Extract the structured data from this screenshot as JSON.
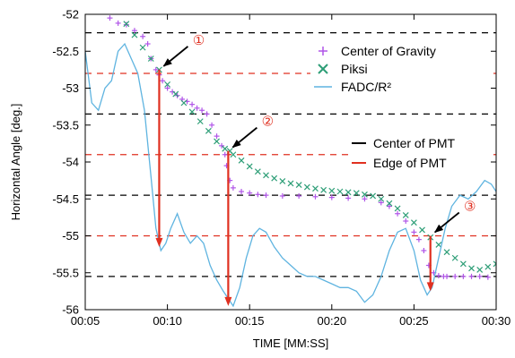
{
  "chart_data": {
    "type": "line",
    "xlabel": "TIME [MM:SS]",
    "ylabel": "Horizontal Angle [deg.]",
    "xlim": [
      5,
      30
    ],
    "ylim": [
      -56,
      -52
    ],
    "x_ticks": [
      {
        "v": 5,
        "label": "00:05"
      },
      {
        "v": 10,
        "label": "00:10"
      },
      {
        "v": 15,
        "label": "00:15"
      },
      {
        "v": 20,
        "label": "00:20"
      },
      {
        "v": 25,
        "label": "00:25"
      },
      {
        "v": 30,
        "label": "00:30"
      }
    ],
    "y_ticks": [
      {
        "v": -52,
        "label": "-52"
      },
      {
        "v": -52.5,
        "label": "-52.5"
      },
      {
        "v": -53,
        "label": "-53"
      },
      {
        "v": -53.5,
        "label": "-53.5"
      },
      {
        "v": -54,
        "label": "-54"
      },
      {
        "v": -54.5,
        "label": "-54.5"
      },
      {
        "v": -55,
        "label": "-55"
      },
      {
        "v": -55.5,
        "label": "-55.5"
      },
      {
        "v": -56,
        "label": "-56"
      }
    ],
    "pmt_center_lines": [
      -52.25,
      -53.35,
      -54.45,
      -55.55
    ],
    "pmt_edge_lines": [
      -52.8,
      -53.9,
      -55.0
    ],
    "series": [
      {
        "name": "Center of Gravity",
        "marker": "+",
        "color": "#b055e8",
        "x": [
          6.5,
          7.0,
          7.5,
          8.0,
          8.5,
          8.8,
          9.0,
          9.3,
          9.5,
          9.7,
          10.0,
          10.3,
          10.6,
          10.9,
          11.2,
          11.5,
          11.8,
          12.1,
          12.4,
          12.7,
          13.0,
          13.3,
          13.5,
          13.6,
          13.8,
          14.0,
          14.5,
          15.0,
          15.5,
          16,
          17,
          18,
          19,
          20,
          21,
          22,
          23,
          23.5,
          24,
          24.5,
          25,
          25.3,
          25.6,
          25.9,
          26.2,
          26.5,
          26.8,
          27,
          27.5,
          28,
          28.5,
          29,
          29.5
        ],
        "y": [
          -52.05,
          -52.12,
          -52.14,
          -52.22,
          -52.3,
          -52.4,
          -52.6,
          -52.75,
          -52.82,
          -52.9,
          -53.0,
          -53.05,
          -53.1,
          -53.15,
          -53.18,
          -53.22,
          -53.27,
          -53.3,
          -53.35,
          -53.5,
          -53.65,
          -53.78,
          -53.9,
          -54.05,
          -54.25,
          -54.35,
          -54.4,
          -54.42,
          -54.44,
          -54.45,
          -54.46,
          -54.46,
          -54.47,
          -54.48,
          -54.49,
          -54.5,
          -54.55,
          -54.6,
          -54.7,
          -54.8,
          -54.95,
          -55.05,
          -55.2,
          -55.4,
          -55.5,
          -55.54,
          -55.55,
          -55.55,
          -55.55,
          -55.55,
          -55.55,
          -55.55,
          -55.56
        ]
      },
      {
        "name": "Piksi",
        "marker": "x",
        "color": "#2e9e77",
        "x": [
          7.5,
          8.0,
          8.5,
          9.0,
          9.5,
          10.0,
          10.5,
          11.0,
          11.5,
          12.0,
          12.5,
          13.0,
          13.5,
          13.8,
          14.0,
          14.5,
          15.0,
          15.5,
          16.0,
          16.5,
          17.0,
          17.5,
          18,
          18.5,
          19,
          19.5,
          20,
          20.5,
          21,
          21.5,
          22,
          22.5,
          23,
          23.5,
          24,
          24.5,
          25,
          25.5,
          26,
          26.5,
          27,
          27.5,
          28,
          28.5,
          29,
          29.5,
          30
        ],
        "y": [
          -52.13,
          -52.28,
          -52.45,
          -52.6,
          -52.75,
          -52.95,
          -53.08,
          -53.2,
          -53.32,
          -53.45,
          -53.58,
          -53.72,
          -53.82,
          -53.85,
          -53.9,
          -53.98,
          -54.06,
          -54.13,
          -54.18,
          -54.22,
          -54.26,
          -54.29,
          -54.31,
          -54.34,
          -54.36,
          -54.38,
          -54.39,
          -54.4,
          -54.41,
          -54.42,
          -54.44,
          -54.46,
          -54.5,
          -54.56,
          -54.63,
          -54.72,
          -54.82,
          -54.92,
          -55.02,
          -55.12,
          -55.22,
          -55.3,
          -55.38,
          -55.44,
          -55.46,
          -55.42,
          -55.38
        ]
      },
      {
        "name": "FADC/R²",
        "marker": "line",
        "color": "#5fb4e0",
        "x": [
          5,
          5.4,
          5.8,
          6.2,
          6.6,
          7.0,
          7.4,
          7.8,
          8.2,
          8.6,
          9.0,
          9.3,
          9.6,
          9.9,
          10.2,
          10.6,
          11.0,
          11.4,
          11.8,
          12.2,
          12.6,
          13.0,
          13.4,
          13.7,
          14.0,
          14.4,
          14.8,
          15.2,
          15.6,
          16.0,
          16.5,
          17.0,
          17.5,
          18.0,
          18.5,
          19.0,
          19.5,
          20,
          20.5,
          21,
          21.5,
          22,
          22.5,
          23,
          23.5,
          24,
          24.5,
          25,
          25.4,
          25.8,
          26.1,
          26.5,
          26.9,
          27.3,
          27.8,
          28.3,
          28.8,
          29.3,
          29.7,
          30
        ],
        "y": [
          -52.5,
          -53.2,
          -53.3,
          -53.0,
          -52.9,
          -52.5,
          -52.4,
          -52.6,
          -52.8,
          -53.3,
          -54.2,
          -54.9,
          -55.2,
          -55.1,
          -54.9,
          -54.7,
          -54.95,
          -55.1,
          -55.0,
          -55.1,
          -55.4,
          -55.6,
          -55.75,
          -55.85,
          -55.95,
          -55.7,
          -55.3,
          -55.0,
          -54.9,
          -54.95,
          -55.15,
          -55.3,
          -55.4,
          -55.5,
          -55.55,
          -55.55,
          -55.6,
          -55.65,
          -55.7,
          -55.7,
          -55.75,
          -55.9,
          -55.8,
          -55.55,
          -55.2,
          -54.95,
          -54.9,
          -55.2,
          -55.6,
          -55.8,
          -55.7,
          -55.3,
          -54.9,
          -54.6,
          -54.45,
          -54.5,
          -54.4,
          -54.25,
          -54.3,
          -54.4
        ]
      }
    ],
    "legend_position": "top-right",
    "legend_entries": [
      {
        "label": "Center of Gravity",
        "marker": "+",
        "color": "#b055e8"
      },
      {
        "label": "Piksi",
        "marker": "x",
        "color": "#2e9e77"
      },
      {
        "label": "FADC/R²",
        "marker": "line",
        "color": "#5fb4e0"
      }
    ],
    "legend2_entries": [
      {
        "label": "Center of PMT",
        "color": "#000000"
      },
      {
        "label": "Edge of PMT",
        "color": "#e03020"
      }
    ],
    "annotations": [
      {
        "label": "①",
        "point": [
          9.5,
          -52.75
        ],
        "arrow_to": [
          9.5,
          -55.15
        ]
      },
      {
        "label": "②",
        "point": [
          13.7,
          -53.85
        ],
        "arrow_to": [
          13.7,
          -55.95
        ]
      },
      {
        "label": "③",
        "point": [
          26.0,
          -55.0
        ],
        "arrow_to": [
          26.0,
          -55.75
        ]
      }
    ],
    "colors": {
      "arrow_red": "#e03020",
      "annotation_black": "#000000",
      "pmt_edge": "#e03020",
      "pmt_center": "#000000"
    }
  }
}
